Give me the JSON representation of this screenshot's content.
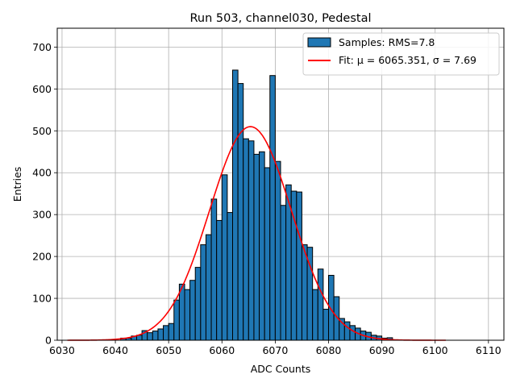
{
  "chart_data": {
    "type": "histogram",
    "title": "Run 503, channel030, Pedestal",
    "xlabel": "ADC Counts",
    "ylabel": "Entries",
    "xlim": [
      6029.1,
      6112.9
    ],
    "ylim": [
      0,
      745
    ],
    "xticks": [
      6030,
      6040,
      6050,
      6060,
      6070,
      6080,
      6090,
      6100,
      6110
    ],
    "yticks": [
      0,
      100,
      200,
      300,
      400,
      500,
      600,
      700
    ],
    "grid": true,
    "legend_position": "top-right",
    "bin_width": 1,
    "bins_start": 6041,
    "counts": [
      5,
      5,
      10,
      12,
      23,
      18,
      22,
      27,
      35,
      40,
      96,
      134,
      121,
      143,
      174,
      228,
      252,
      337,
      286,
      395,
      305,
      645,
      613,
      481,
      476,
      444,
      450,
      412,
      632,
      427,
      322,
      371,
      356,
      354,
      228,
      222,
      121,
      170,
      74,
      155,
      104,
      52,
      44,
      35,
      29,
      22,
      19,
      12,
      10,
      5,
      6
    ],
    "histogram_label": "Samples: RMS=7.8",
    "fit": {
      "label": "Fit: μ = 6065.351, σ = 7.69",
      "mu": 6065.351,
      "sigma": 7.69,
      "amplitude": 510,
      "x_range": [
        6031,
        6102
      ]
    },
    "colors": {
      "bar_fill": "#1f77b4",
      "bar_edge": "#000000",
      "fit_line": "#ff0000",
      "grid": "#b0b0b0"
    }
  }
}
